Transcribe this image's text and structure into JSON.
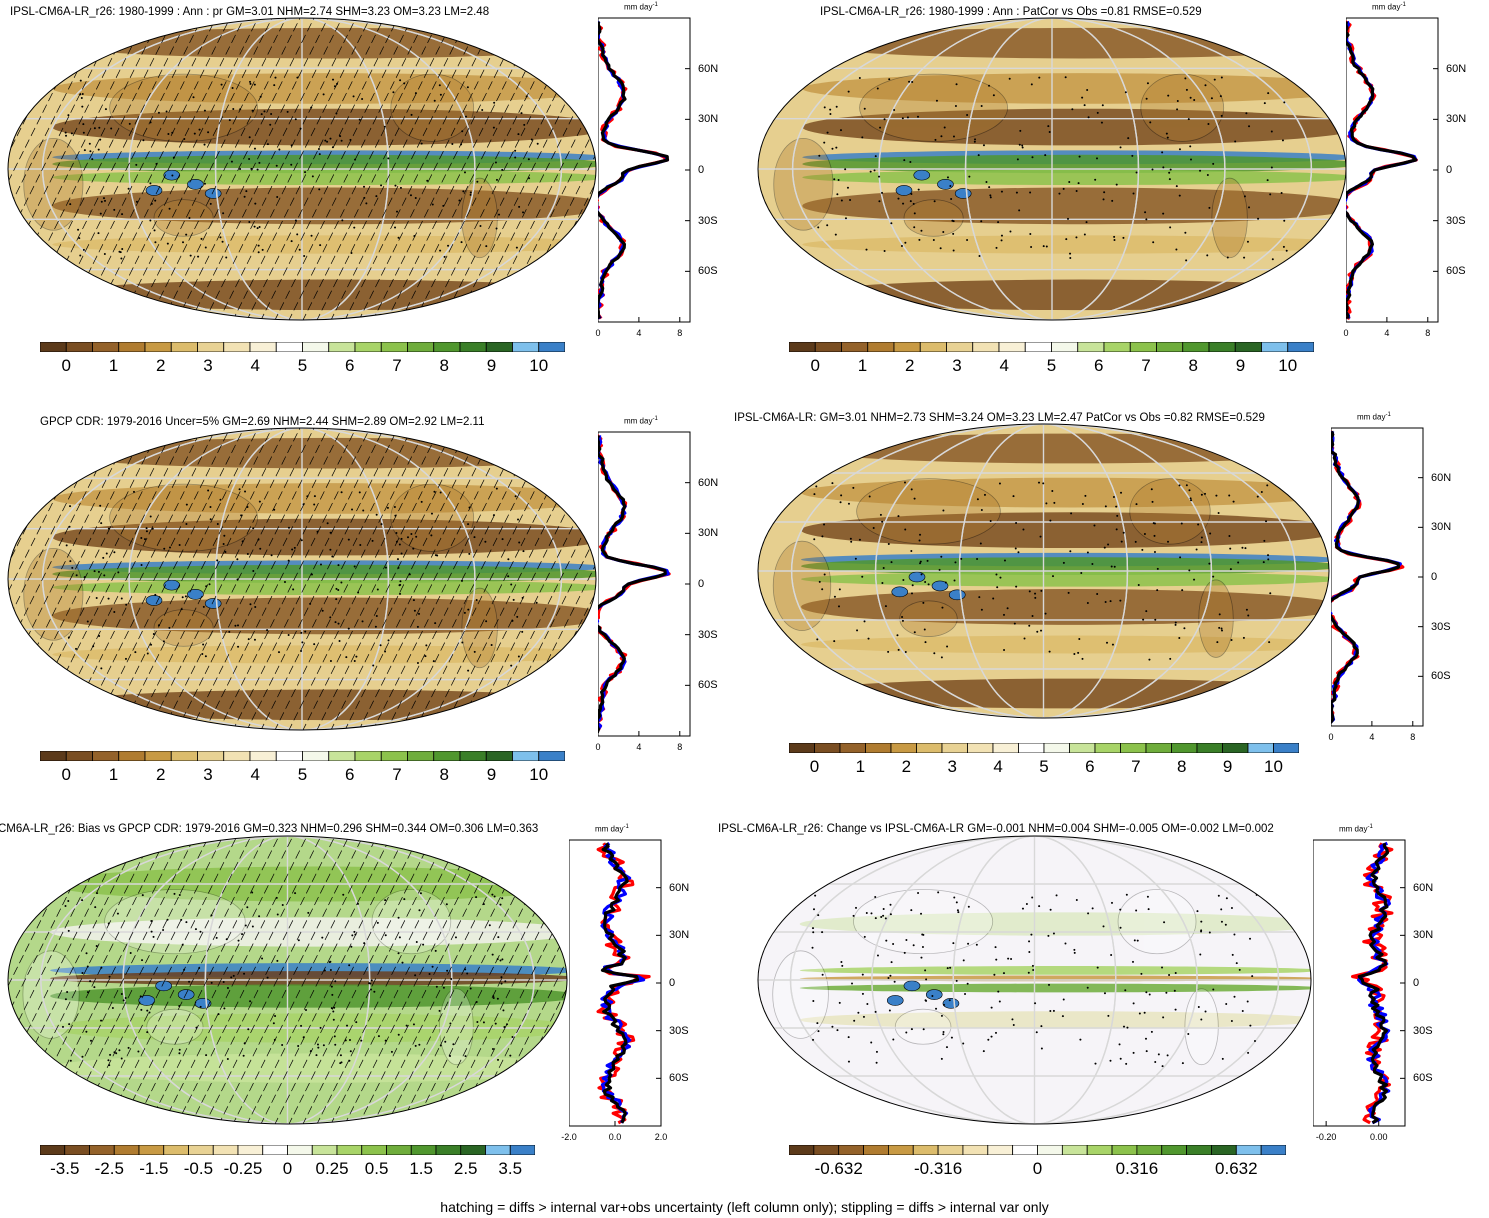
{
  "panels": [
    {
      "id": "model-r26",
      "title": "IPSL-CM6A-LR_r26: 1980-1999 : Ann : pr GM=3.01 NHM=2.74 SHM=3.23 OM=3.23 LM=2.48",
      "colorbar": "abs",
      "hatch": true,
      "stipple": true,
      "profile_xticks": [
        "0",
        "4",
        "8"
      ],
      "profile_xlim": [
        0,
        9
      ]
    },
    {
      "id": "model-r26-patcor",
      "title": "IPSL-CM6A-LR_r26: 1980-1999 : Ann : PatCor vs Obs =0.81 RMSE=0.529",
      "colorbar": "abs",
      "hatch": false,
      "stipple": true,
      "profile_xticks": [
        "0",
        "4",
        "8"
      ],
      "profile_xlim": [
        0,
        9
      ]
    },
    {
      "id": "gpcp",
      "title": "GPCP CDR: 1979-2016 Uncer=5% GM=2.69 NHM=2.44 SHM=2.89 OM=2.92 LM=2.11",
      "colorbar": "abs",
      "hatch": true,
      "stipple": true,
      "profile_xticks": [
        "0",
        "4",
        "8"
      ],
      "profile_xlim": [
        0,
        9
      ]
    },
    {
      "id": "model-ensemble",
      "title": "IPSL-CM6A-LR: GM=3.01 NHM=2.73 SHM=3.24 OM=3.23 LM=2.47 PatCor vs Obs =0.82 RMSE=0.529",
      "colorbar": "abs",
      "hatch": false,
      "stipple": true,
      "profile_xticks": [
        "0",
        "4",
        "8"
      ],
      "profile_xlim": [
        0,
        9
      ]
    },
    {
      "id": "bias",
      "title": "CM6A-LR_r26: Bias vs GPCP CDR: 1979-2016 GM=0.323 NHM=0.296 SHM=0.344 OM=0.306 LM=0.363",
      "colorbar": "bias",
      "hatch": true,
      "stipple": true,
      "profile_xticks": [
        "-2.0",
        "0.0",
        "2.0"
      ],
      "profile_xlim": [
        -2,
        2
      ]
    },
    {
      "id": "change",
      "title": "IPSL-CM6A-LR_r26: Change vs IPSL-CM6A-LR GM=-0.001 NHM=0.004 SHM=-0.005 OM=-0.002 LM=0.002",
      "colorbar": "change",
      "hatch": false,
      "stipple": true,
      "profile_xticks": [
        "-0.20",
        "0.00"
      ],
      "profile_xlim": [
        -0.25,
        0.1
      ]
    }
  ],
  "profile_units": "mm day",
  "profile_units_exp": "-1",
  "lat_labels": [
    "60N",
    "30N",
    "0",
    "30S",
    "60S"
  ],
  "colorbars": {
    "abs": {
      "colors": [
        "#5c3a1a",
        "#7a4e22",
        "#94622a",
        "#b07c30",
        "#c89a44",
        "#dcbc6c",
        "#e8d294",
        "#f2e2b4",
        "#f8f0d6",
        "#ffffff",
        "#f4f8ea",
        "#c8e49a",
        "#a8d468",
        "#8cc24c",
        "#6fad3c",
        "#50972e",
        "#3a7f28",
        "#2a6524",
        "#7ec0ec",
        "#3a80c8"
      ],
      "labels": [
        "0",
        "1",
        "2",
        "3",
        "4",
        "5",
        "6",
        "7",
        "8",
        "9",
        "10"
      ]
    },
    "bias": {
      "colors": [
        "#5c3a1a",
        "#7a4e22",
        "#94622a",
        "#b07c30",
        "#c89a44",
        "#dcbc6c",
        "#e8d294",
        "#f2e2b4",
        "#f8f0d6",
        "#ffffff",
        "#f4f8ea",
        "#c8e49a",
        "#a8d468",
        "#8cc24c",
        "#6fad3c",
        "#50972e",
        "#3a7f28",
        "#2a6524",
        "#7ec0ec",
        "#3a80c8"
      ],
      "labels": [
        "-3.5",
        "-2.5",
        "-1.5",
        "-0.5",
        "-0.25",
        "0",
        "0.25",
        "0.5",
        "1.5",
        "2.5",
        "3.5"
      ]
    },
    "change": {
      "colors": [
        "#5c3a1a",
        "#7a4e22",
        "#94622a",
        "#b07c30",
        "#c89a44",
        "#dcbc6c",
        "#e8d294",
        "#f2e2b4",
        "#f8f0d6",
        "#ffffff",
        "#f4f8ea",
        "#c8e49a",
        "#a8d468",
        "#8cc24c",
        "#6fad3c",
        "#50972e",
        "#3a7f28",
        "#2a6524",
        "#7ec0ec",
        "#3a80c8"
      ],
      "labels": [
        "-0.632",
        "-0.316",
        "0",
        "0.316",
        "0.632"
      ]
    }
  },
  "profile_colors": {
    "model": "#000000",
    "obs": "#ff0000",
    "ens": "#0000ff"
  },
  "footnote": "hatching = diffs > internal var+obs uncertainty (left column only); stippling = diffs > internal var only"
}
